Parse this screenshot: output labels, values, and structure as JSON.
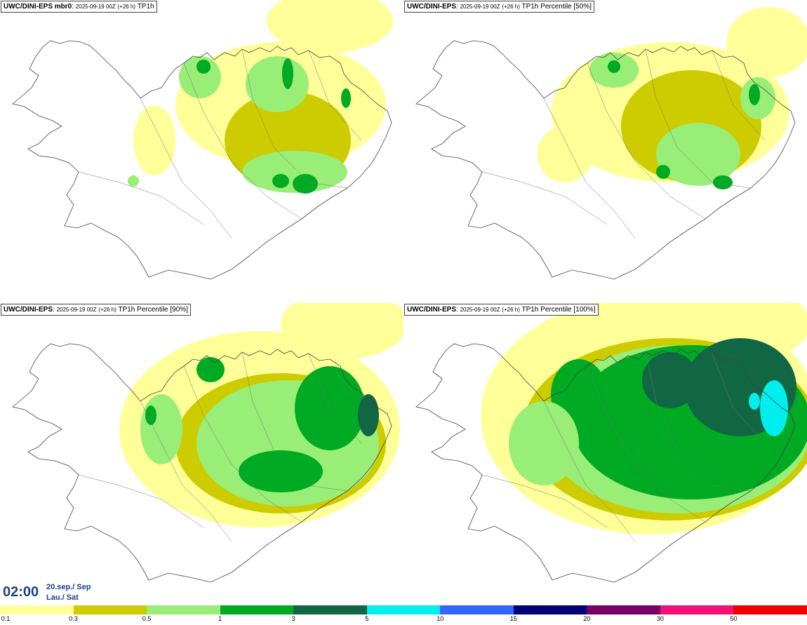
{
  "panels": [
    {
      "model": "UWC/DINI-EPS mbr0",
      "run": "2025-09-19 00Z",
      "lead": "(+26 h)",
      "param": "TP1h",
      "coverage": "low"
    },
    {
      "model": "UWC/DINI-EPS",
      "run": "2025-09-19 00Z",
      "lead": "(+26 h)",
      "param": "TP1h Percentile [50%]",
      "coverage": "low-mid"
    },
    {
      "model": "UWC/DINI-EPS",
      "run": "2025-09-19 00Z",
      "lead": "(+26 h)",
      "param": "TP1h Percentile [90%]",
      "coverage": "mid"
    },
    {
      "model": "UWC/DINI-EPS",
      "run": "2025-09-19 00Z",
      "lead": "(+26 h)",
      "param": "TP1h Percentile [100%]",
      "coverage": "high"
    }
  ],
  "time": {
    "clock": "02:00",
    "date_line": "20.sep./ Sep",
    "day_line": "Lau./ Sat"
  },
  "colorbar": {
    "colors": [
      "#ffff99",
      "#cccc00",
      "#99ee77",
      "#00aa22",
      "#116644",
      "#00eeee",
      "#3366ff",
      "#000077",
      "#770066",
      "#ee1177",
      "#ee0000"
    ],
    "labels": [
      "0.1",
      "0.3",
      "0.5",
      "1",
      "3",
      "5",
      "10",
      "15",
      "20",
      "30",
      "50"
    ]
  }
}
